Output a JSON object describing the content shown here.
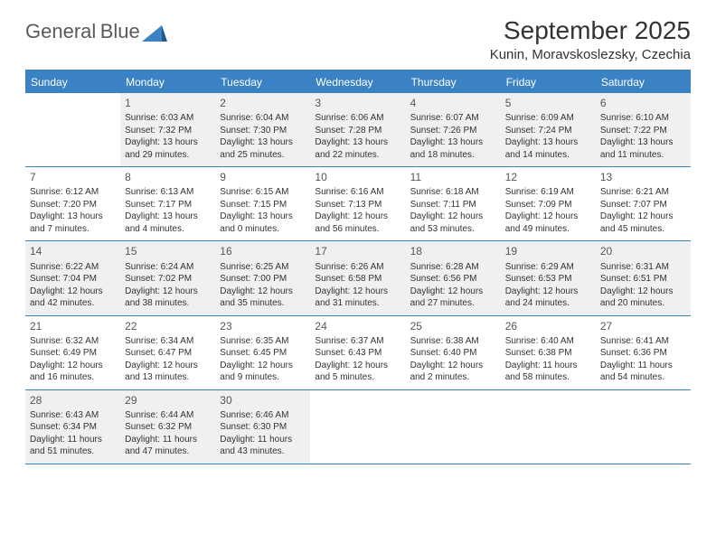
{
  "logo": {
    "textGray": "General",
    "textBlue": "Blue"
  },
  "header": {
    "title": "September 2025",
    "location": "Kunin, Moravskoslezsky, Czechia"
  },
  "colors": {
    "accent": "#3b82c4",
    "text": "#333333",
    "shaded": "#f0f0f0",
    "background": "#ffffff"
  },
  "dayNames": [
    "Sunday",
    "Monday",
    "Tuesday",
    "Wednesday",
    "Thursday",
    "Friday",
    "Saturday"
  ],
  "weeks": [
    [
      {
        "day": "",
        "shaded": false,
        "sunrise": "",
        "sunset": "",
        "daylight1": "",
        "daylight2": ""
      },
      {
        "day": "1",
        "shaded": true,
        "sunrise": "Sunrise: 6:03 AM",
        "sunset": "Sunset: 7:32 PM",
        "daylight1": "Daylight: 13 hours",
        "daylight2": "and 29 minutes."
      },
      {
        "day": "2",
        "shaded": true,
        "sunrise": "Sunrise: 6:04 AM",
        "sunset": "Sunset: 7:30 PM",
        "daylight1": "Daylight: 13 hours",
        "daylight2": "and 25 minutes."
      },
      {
        "day": "3",
        "shaded": true,
        "sunrise": "Sunrise: 6:06 AM",
        "sunset": "Sunset: 7:28 PM",
        "daylight1": "Daylight: 13 hours",
        "daylight2": "and 22 minutes."
      },
      {
        "day": "4",
        "shaded": true,
        "sunrise": "Sunrise: 6:07 AM",
        "sunset": "Sunset: 7:26 PM",
        "daylight1": "Daylight: 13 hours",
        "daylight2": "and 18 minutes."
      },
      {
        "day": "5",
        "shaded": true,
        "sunrise": "Sunrise: 6:09 AM",
        "sunset": "Sunset: 7:24 PM",
        "daylight1": "Daylight: 13 hours",
        "daylight2": "and 14 minutes."
      },
      {
        "day": "6",
        "shaded": true,
        "sunrise": "Sunrise: 6:10 AM",
        "sunset": "Sunset: 7:22 PM",
        "daylight1": "Daylight: 13 hours",
        "daylight2": "and 11 minutes."
      }
    ],
    [
      {
        "day": "7",
        "shaded": false,
        "sunrise": "Sunrise: 6:12 AM",
        "sunset": "Sunset: 7:20 PM",
        "daylight1": "Daylight: 13 hours",
        "daylight2": "and 7 minutes."
      },
      {
        "day": "8",
        "shaded": false,
        "sunrise": "Sunrise: 6:13 AM",
        "sunset": "Sunset: 7:17 PM",
        "daylight1": "Daylight: 13 hours",
        "daylight2": "and 4 minutes."
      },
      {
        "day": "9",
        "shaded": false,
        "sunrise": "Sunrise: 6:15 AM",
        "sunset": "Sunset: 7:15 PM",
        "daylight1": "Daylight: 13 hours",
        "daylight2": "and 0 minutes."
      },
      {
        "day": "10",
        "shaded": false,
        "sunrise": "Sunrise: 6:16 AM",
        "sunset": "Sunset: 7:13 PM",
        "daylight1": "Daylight: 12 hours",
        "daylight2": "and 56 minutes."
      },
      {
        "day": "11",
        "shaded": false,
        "sunrise": "Sunrise: 6:18 AM",
        "sunset": "Sunset: 7:11 PM",
        "daylight1": "Daylight: 12 hours",
        "daylight2": "and 53 minutes."
      },
      {
        "day": "12",
        "shaded": false,
        "sunrise": "Sunrise: 6:19 AM",
        "sunset": "Sunset: 7:09 PM",
        "daylight1": "Daylight: 12 hours",
        "daylight2": "and 49 minutes."
      },
      {
        "day": "13",
        "shaded": false,
        "sunrise": "Sunrise: 6:21 AM",
        "sunset": "Sunset: 7:07 PM",
        "daylight1": "Daylight: 12 hours",
        "daylight2": "and 45 minutes."
      }
    ],
    [
      {
        "day": "14",
        "shaded": true,
        "sunrise": "Sunrise: 6:22 AM",
        "sunset": "Sunset: 7:04 PM",
        "daylight1": "Daylight: 12 hours",
        "daylight2": "and 42 minutes."
      },
      {
        "day": "15",
        "shaded": true,
        "sunrise": "Sunrise: 6:24 AM",
        "sunset": "Sunset: 7:02 PM",
        "daylight1": "Daylight: 12 hours",
        "daylight2": "and 38 minutes."
      },
      {
        "day": "16",
        "shaded": true,
        "sunrise": "Sunrise: 6:25 AM",
        "sunset": "Sunset: 7:00 PM",
        "daylight1": "Daylight: 12 hours",
        "daylight2": "and 35 minutes."
      },
      {
        "day": "17",
        "shaded": true,
        "sunrise": "Sunrise: 6:26 AM",
        "sunset": "Sunset: 6:58 PM",
        "daylight1": "Daylight: 12 hours",
        "daylight2": "and 31 minutes."
      },
      {
        "day": "18",
        "shaded": true,
        "sunrise": "Sunrise: 6:28 AM",
        "sunset": "Sunset: 6:56 PM",
        "daylight1": "Daylight: 12 hours",
        "daylight2": "and 27 minutes."
      },
      {
        "day": "19",
        "shaded": true,
        "sunrise": "Sunrise: 6:29 AM",
        "sunset": "Sunset: 6:53 PM",
        "daylight1": "Daylight: 12 hours",
        "daylight2": "and 24 minutes."
      },
      {
        "day": "20",
        "shaded": true,
        "sunrise": "Sunrise: 6:31 AM",
        "sunset": "Sunset: 6:51 PM",
        "daylight1": "Daylight: 12 hours",
        "daylight2": "and 20 minutes."
      }
    ],
    [
      {
        "day": "21",
        "shaded": false,
        "sunrise": "Sunrise: 6:32 AM",
        "sunset": "Sunset: 6:49 PM",
        "daylight1": "Daylight: 12 hours",
        "daylight2": "and 16 minutes."
      },
      {
        "day": "22",
        "shaded": false,
        "sunrise": "Sunrise: 6:34 AM",
        "sunset": "Sunset: 6:47 PM",
        "daylight1": "Daylight: 12 hours",
        "daylight2": "and 13 minutes."
      },
      {
        "day": "23",
        "shaded": false,
        "sunrise": "Sunrise: 6:35 AM",
        "sunset": "Sunset: 6:45 PM",
        "daylight1": "Daylight: 12 hours",
        "daylight2": "and 9 minutes."
      },
      {
        "day": "24",
        "shaded": false,
        "sunrise": "Sunrise: 6:37 AM",
        "sunset": "Sunset: 6:43 PM",
        "daylight1": "Daylight: 12 hours",
        "daylight2": "and 5 minutes."
      },
      {
        "day": "25",
        "shaded": false,
        "sunrise": "Sunrise: 6:38 AM",
        "sunset": "Sunset: 6:40 PM",
        "daylight1": "Daylight: 12 hours",
        "daylight2": "and 2 minutes."
      },
      {
        "day": "26",
        "shaded": false,
        "sunrise": "Sunrise: 6:40 AM",
        "sunset": "Sunset: 6:38 PM",
        "daylight1": "Daylight: 11 hours",
        "daylight2": "and 58 minutes."
      },
      {
        "day": "27",
        "shaded": false,
        "sunrise": "Sunrise: 6:41 AM",
        "sunset": "Sunset: 6:36 PM",
        "daylight1": "Daylight: 11 hours",
        "daylight2": "and 54 minutes."
      }
    ],
    [
      {
        "day": "28",
        "shaded": true,
        "sunrise": "Sunrise: 6:43 AM",
        "sunset": "Sunset: 6:34 PM",
        "daylight1": "Daylight: 11 hours",
        "daylight2": "and 51 minutes."
      },
      {
        "day": "29",
        "shaded": true,
        "sunrise": "Sunrise: 6:44 AM",
        "sunset": "Sunset: 6:32 PM",
        "daylight1": "Daylight: 11 hours",
        "daylight2": "and 47 minutes."
      },
      {
        "day": "30",
        "shaded": true,
        "sunrise": "Sunrise: 6:46 AM",
        "sunset": "Sunset: 6:30 PM",
        "daylight1": "Daylight: 11 hours",
        "daylight2": "and 43 minutes."
      },
      {
        "day": "",
        "shaded": false,
        "sunrise": "",
        "sunset": "",
        "daylight1": "",
        "daylight2": ""
      },
      {
        "day": "",
        "shaded": false,
        "sunrise": "",
        "sunset": "",
        "daylight1": "",
        "daylight2": ""
      },
      {
        "day": "",
        "shaded": false,
        "sunrise": "",
        "sunset": "",
        "daylight1": "",
        "daylight2": ""
      },
      {
        "day": "",
        "shaded": false,
        "sunrise": "",
        "sunset": "",
        "daylight1": "",
        "daylight2": ""
      }
    ]
  ]
}
